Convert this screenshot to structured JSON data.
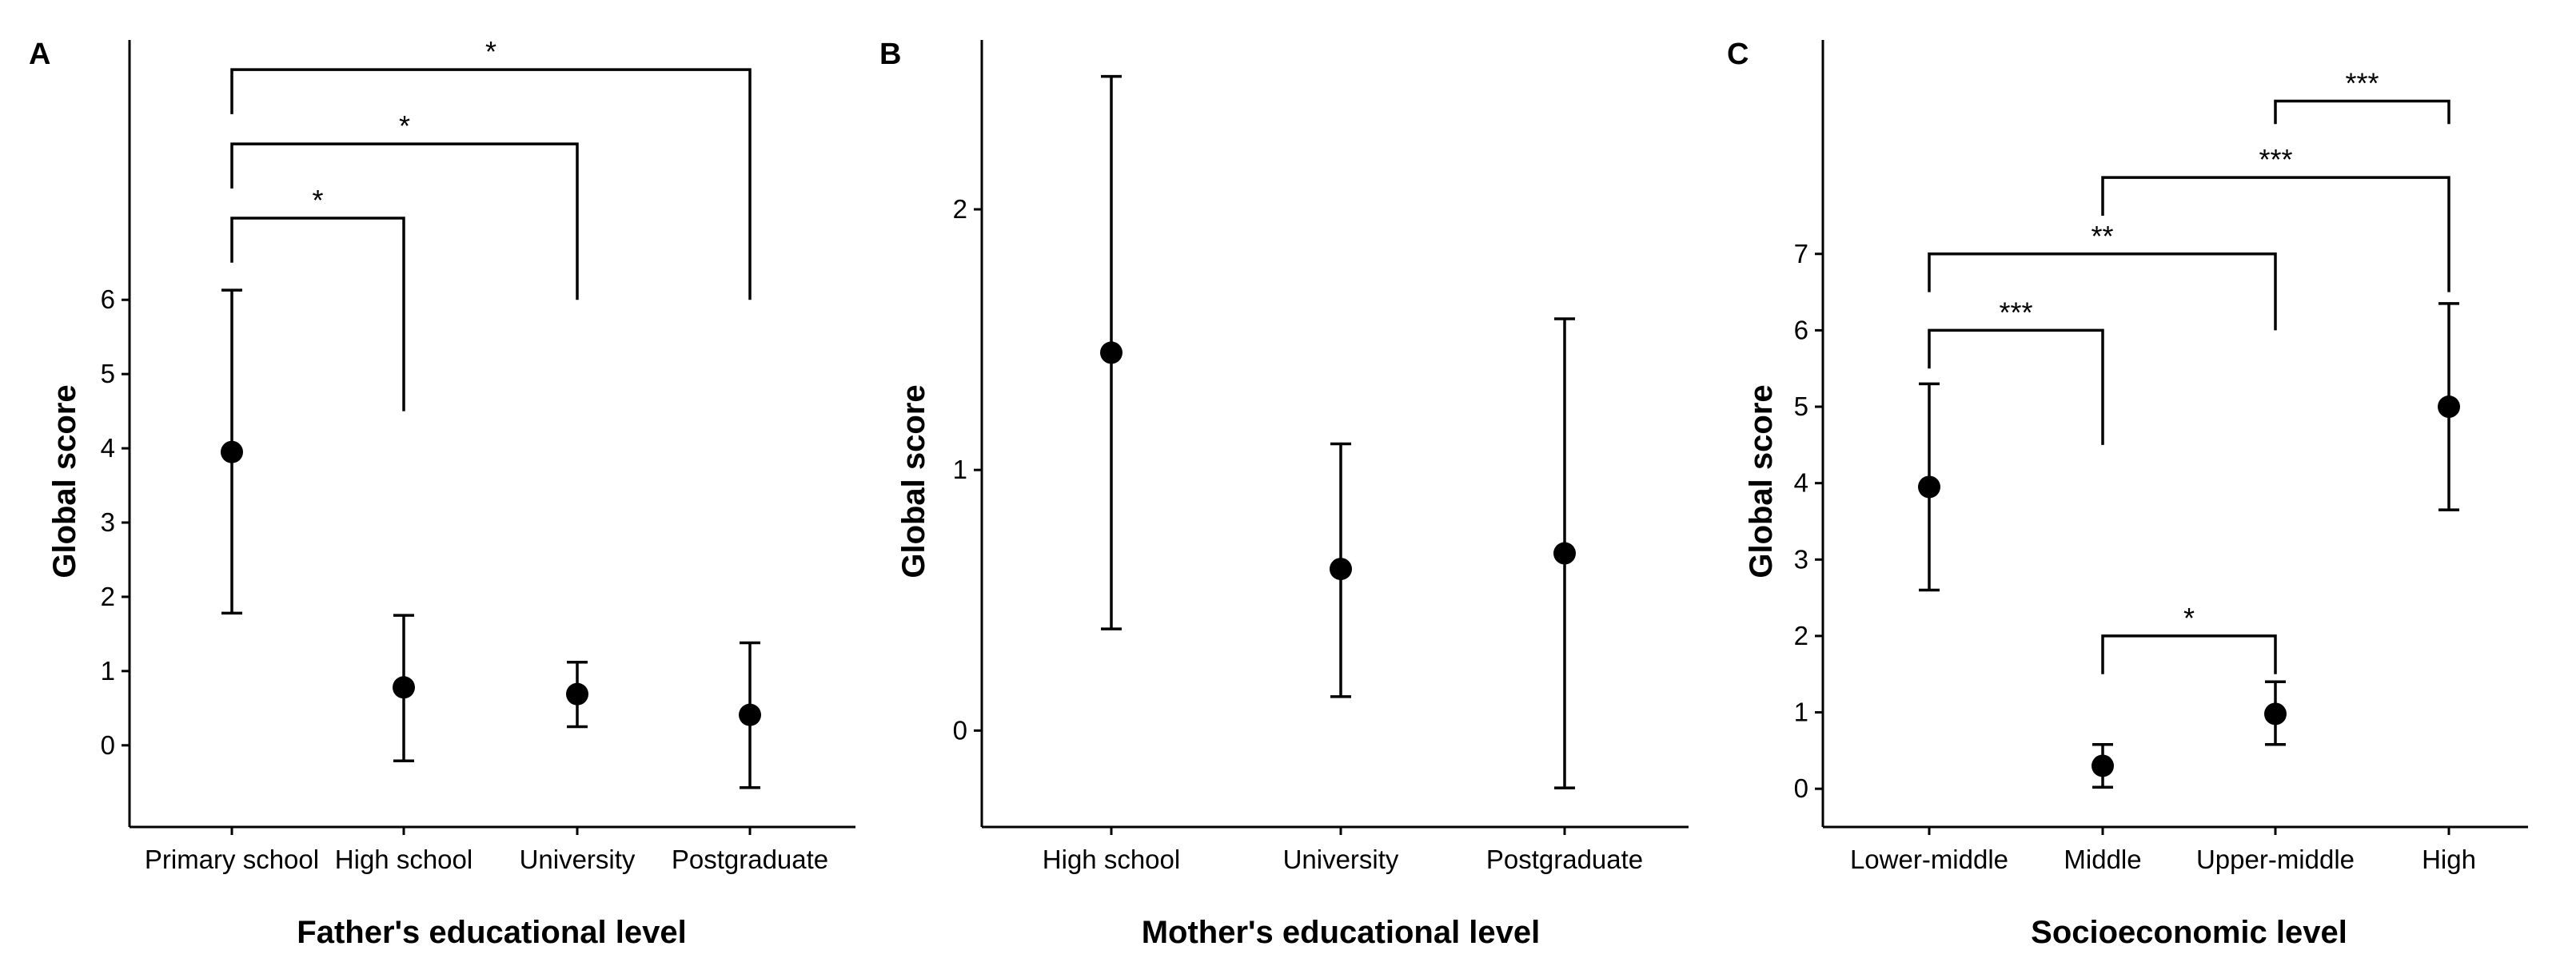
{
  "chart_data": [
    {
      "panel": "A",
      "type": "scatter",
      "xlabel": "Father's educational level",
      "ylabel": "Global score",
      "categories": [
        "Primary school",
        "High school",
        "University",
        "Postgraduate"
      ],
      "yticks": [
        "0",
        "1",
        "2",
        "3",
        "4",
        "5",
        "6"
      ],
      "ylim": [
        -1.1,
        9.5
      ],
      "means": [
        3.95,
        0.78,
        0.69,
        0.41
      ],
      "lower": [
        1.78,
        -0.21,
        0.25,
        -0.57
      ],
      "upper": [
        6.13,
        1.75,
        1.12,
        1.38
      ],
      "comparisons": [
        {
          "from": 0,
          "to": 1,
          "level": 7.1,
          "left_end": 6.5,
          "right_end": 4.5,
          "label": "*"
        },
        {
          "from": 0,
          "to": 2,
          "level": 8.1,
          "left_end": 7.5,
          "right_end": 6.0,
          "label": "*"
        },
        {
          "from": 0,
          "to": 3,
          "level": 9.1,
          "left_end": 8.5,
          "right_end": 6.0,
          "label": "*"
        }
      ]
    },
    {
      "panel": "B",
      "type": "scatter",
      "xlabel": "Mother's educational level",
      "ylabel": "Global score",
      "categories": [
        "High school",
        "University",
        "Postgraduate"
      ],
      "yticks": [
        "0",
        "1",
        "2"
      ],
      "ylim": [
        -0.37,
        2.65
      ],
      "means": [
        1.45,
        0.62,
        0.68
      ],
      "lower": [
        0.39,
        0.13,
        -0.22
      ],
      "upper": [
        2.51,
        1.1,
        1.58
      ],
      "comparisons": []
    },
    {
      "panel": "C",
      "type": "scatter",
      "xlabel": "Socioeconomic level",
      "ylabel": "Global score",
      "categories": [
        "Lower-middle",
        "Middle",
        "Upper-middle",
        "High"
      ],
      "yticks": [
        "0",
        "1",
        "2",
        "3",
        "4",
        "5",
        "6",
        "7"
      ],
      "ylim": [
        -0.5,
        9.8
      ],
      "means": [
        3.95,
        0.3,
        0.98,
        5.0
      ],
      "lower": [
        2.6,
        0.02,
        0.58,
        3.65
      ],
      "upper": [
        5.3,
        0.58,
        1.4,
        6.35
      ],
      "comparisons": [
        {
          "from": 1,
          "to": 2,
          "level": 2.0,
          "left_end": 1.5,
          "right_end": 1.5,
          "label": "*"
        },
        {
          "from": 0,
          "to": 1,
          "level": 6.0,
          "left_end": 5.5,
          "right_end": 4.5,
          "label": "***"
        },
        {
          "from": 0,
          "to": 2,
          "level": 7.0,
          "left_end": 6.5,
          "right_end": 6.0,
          "label": "**"
        },
        {
          "from": 1,
          "to": 3,
          "level": 8.0,
          "left_end": 7.5,
          "right_end": 6.5,
          "label": "***"
        },
        {
          "from": 2,
          "to": 3,
          "level": 9.0,
          "left_end": 8.7,
          "right_end": 8.7,
          "label": "***"
        }
      ]
    }
  ]
}
